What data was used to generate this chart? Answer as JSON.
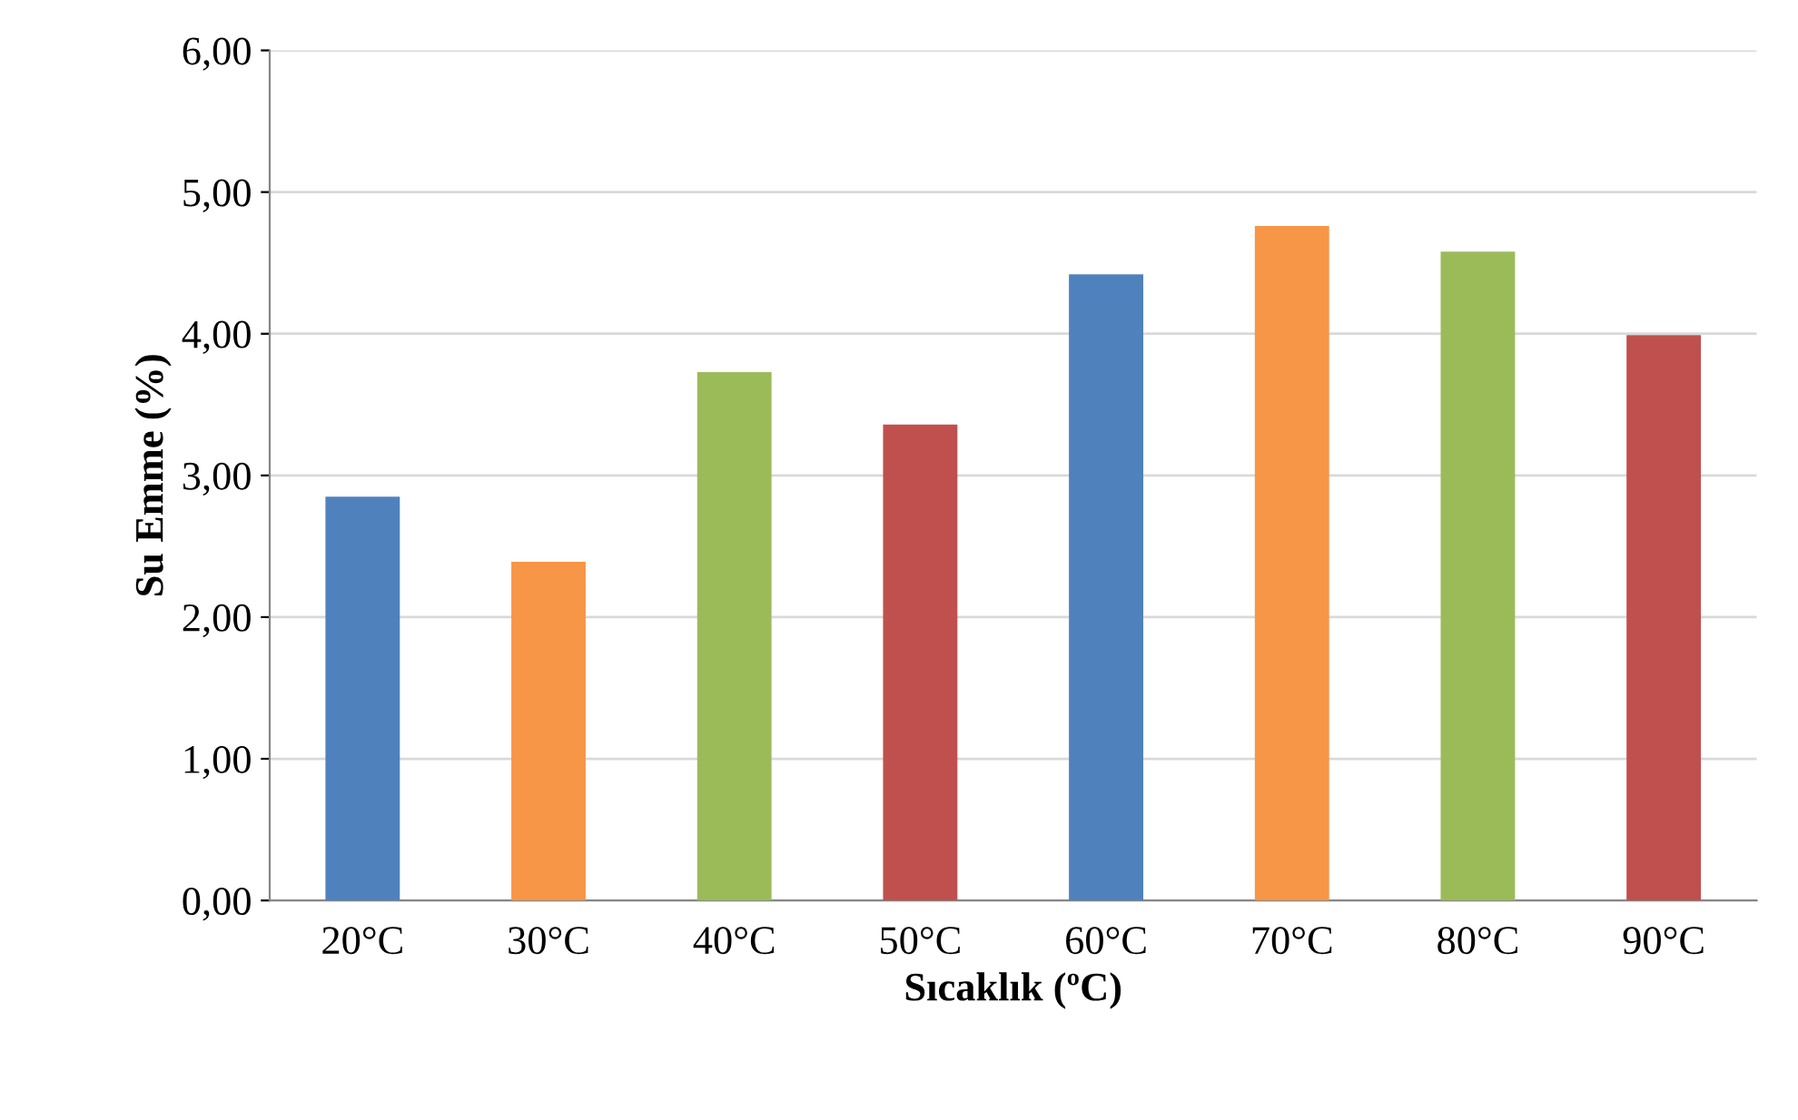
{
  "chart_data": {
    "type": "bar",
    "xlabel": "Sıcaklık (ºC)",
    "ylabel": "Su Emme (%)",
    "categories": [
      "20°C",
      "30°C",
      "40°C",
      "50°C",
      "60°C",
      "70°C",
      "80°C",
      "90°C"
    ],
    "values": [
      2.85,
      2.39,
      3.73,
      3.36,
      4.42,
      4.76,
      4.58,
      3.99
    ],
    "colors": [
      "#4f81bd",
      "#f79646",
      "#9bbb59",
      "#c0504d",
      "#4f81bd",
      "#f79646",
      "#9bbb59",
      "#c0504d"
    ],
    "ylim": [
      0,
      6
    ],
    "yticks": [
      {
        "value": 0,
        "label": "0,00"
      },
      {
        "value": 1,
        "label": "1,00"
      },
      {
        "value": 2,
        "label": "2,00"
      },
      {
        "value": 3,
        "label": "3,00"
      },
      {
        "value": 4,
        "label": "4,00"
      },
      {
        "value": 5,
        "label": "5,00"
      },
      {
        "value": 6,
        "label": "6,00"
      }
    ],
    "grid": "y",
    "legend": false
  }
}
